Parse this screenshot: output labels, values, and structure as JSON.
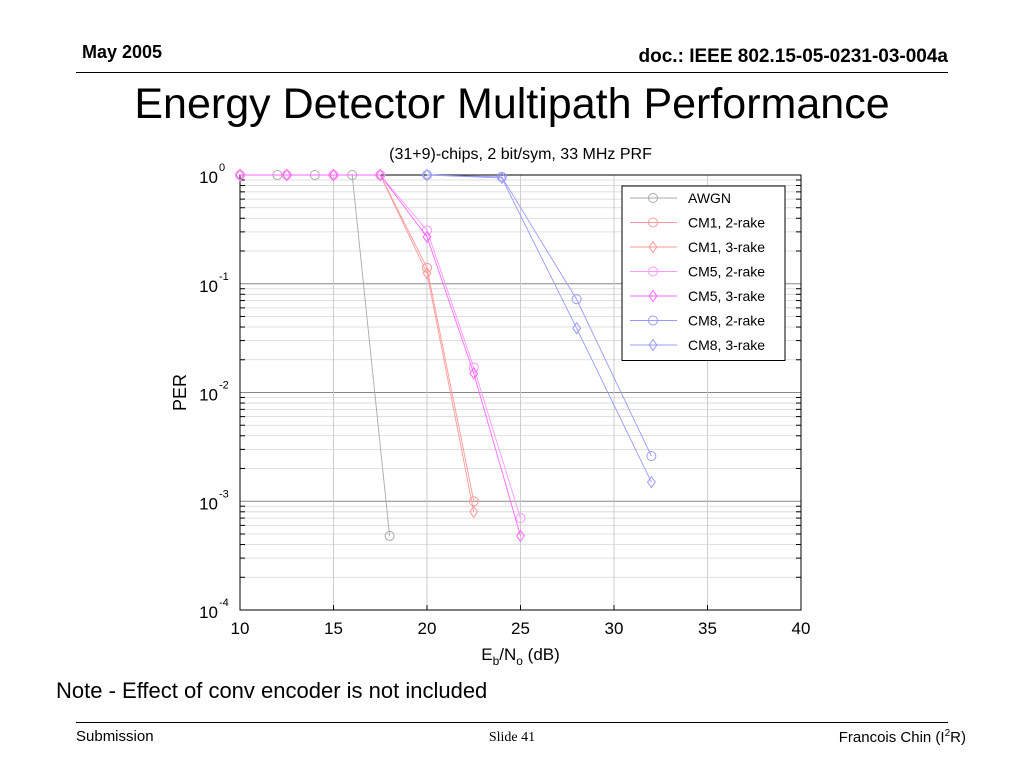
{
  "header": {
    "date": "May 2005",
    "doc_id": "doc.: IEEE 802.15-05-0231-03-004a"
  },
  "slide_title": "Energy Detector Multipath Performance",
  "note": "Note - Effect of conv encoder is not included",
  "footer": {
    "left": "Submission",
    "center": "Slide 41",
    "right_prefix": "Francois Chin (I",
    "right_sup": "2",
    "right_suffix": "R)"
  },
  "chart_data": {
    "type": "line",
    "title": "(31+9)-chips,  2 bit/sym, 33 MHz PRF",
    "xlabel": {
      "base": "E",
      "sub1": "b",
      "mid": "/N",
      "sub2": "o",
      "suffix": " (dB)"
    },
    "ylabel": "PER",
    "xlim": [
      10,
      40
    ],
    "ylim": [
      0.0001,
      1
    ],
    "yscale": "log",
    "x_ticks": [
      10,
      15,
      20,
      25,
      30,
      35,
      40
    ],
    "y_ticks": [
      {
        "base": "10",
        "exp": "0"
      },
      {
        "base": "10",
        "exp": "-1"
      },
      {
        "base": "10",
        "exp": "-2"
      },
      {
        "base": "10",
        "exp": "-3"
      },
      {
        "base": "10",
        "exp": "-4"
      }
    ],
    "grid": true,
    "legend_position": "top-right",
    "series": [
      {
        "name": "AWGN",
        "color": "#aaaaaa",
        "marker": "circle",
        "x": [
          10,
          12,
          14,
          16,
          18
        ],
        "y": [
          1,
          1,
          1,
          1,
          0.00048
        ]
      },
      {
        "name": "CM1, 2-rake",
        "color": "#ff9999",
        "marker": "circle",
        "x": [
          10,
          12.5,
          15,
          17.5,
          20,
          22.5
        ],
        "y": [
          1,
          1,
          1,
          1,
          0.14,
          0.001
        ]
      },
      {
        "name": "CM1, 3-rake",
        "color": "#ff9999",
        "marker": "diamond",
        "x": [
          10,
          12.5,
          15,
          17.5,
          20,
          22.5
        ],
        "y": [
          1,
          1,
          1,
          1,
          0.125,
          0.0008
        ]
      },
      {
        "name": "CM5, 2-rake",
        "color": "#ff99ff",
        "marker": "circle",
        "x": [
          10,
          12.5,
          15,
          17.5,
          20,
          22.5,
          25
        ],
        "y": [
          1,
          1,
          1,
          1,
          0.31,
          0.017,
          0.0007
        ]
      },
      {
        "name": "CM5, 3-rake",
        "color": "#ff66ff",
        "marker": "diamond",
        "x": [
          10,
          12.5,
          15,
          17.5,
          20,
          22.5,
          25
        ],
        "y": [
          1,
          1,
          1,
          1,
          0.27,
          0.015,
          0.00048
        ]
      },
      {
        "name": "CM8, 2-rake",
        "color": "#9999ff",
        "marker": "circle",
        "x": [
          20,
          24,
          28,
          32
        ],
        "y": [
          1,
          0.96,
          0.072,
          0.0026
        ]
      },
      {
        "name": "CM8, 3-rake",
        "color": "#9999ff",
        "marker": "diamond",
        "x": [
          20,
          24,
          28,
          32
        ],
        "y": [
          1,
          0.94,
          0.039,
          0.0015
        ]
      }
    ]
  }
}
